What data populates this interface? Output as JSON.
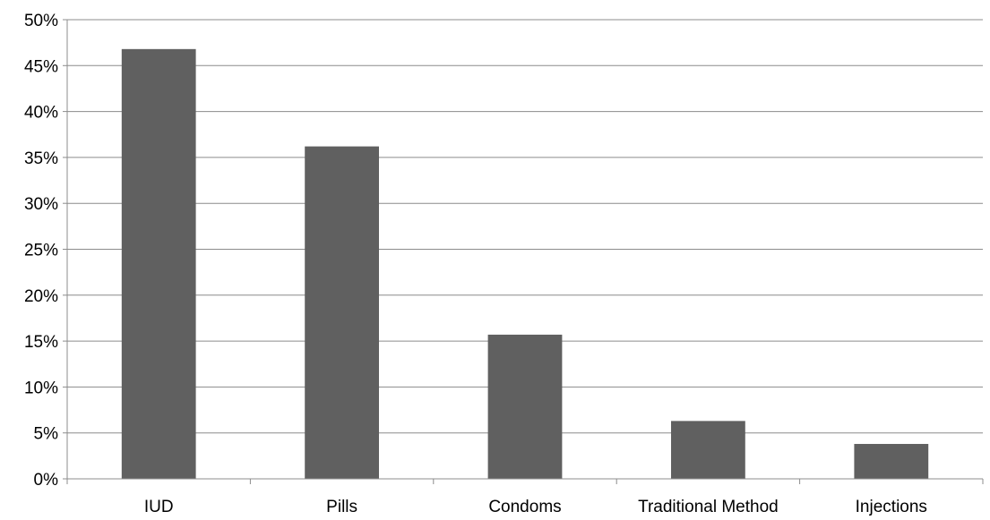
{
  "chart_data": {
    "type": "bar",
    "title": "",
    "xlabel": "",
    "ylabel": "",
    "categories": [
      "IUD",
      "Pills",
      "Condoms",
      "Traditional Method",
      "Injections"
    ],
    "values": [
      46.8,
      36.2,
      15.7,
      6.3,
      3.8
    ],
    "ylim": [
      0,
      50
    ],
    "ytick_step": 5,
    "ytick_labels": [
      "0%",
      "5%",
      "10%",
      "15%",
      "20%",
      "25%",
      "30%",
      "35%",
      "40%",
      "45%",
      "50%"
    ],
    "grid": true,
    "legend": "none",
    "colors": {
      "bar": "#606060",
      "grid": "#8c8c8c",
      "axis": "#8c8c8c"
    }
  }
}
